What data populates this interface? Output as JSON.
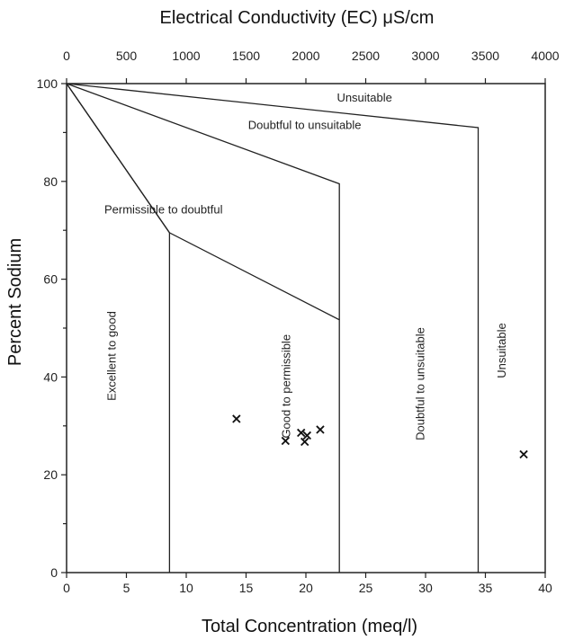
{
  "chart_data": {
    "type": "scatter",
    "title": "",
    "xlabel": "Total Concentration (meq/l)",
    "ylabel": "Percent Sodium",
    "x2label": "Electrical Conductivity (EC) μS/cm",
    "xlim": [
      0,
      40
    ],
    "ylim": [
      0,
      100
    ],
    "x2lim": [
      0,
      4000
    ],
    "x_ticks": [
      0,
      5,
      10,
      15,
      20,
      25,
      30,
      35,
      40
    ],
    "y_ticks": [
      0,
      20,
      40,
      60,
      80,
      100
    ],
    "x2_ticks": [
      "0",
      "500",
      "1000",
      "1500",
      "2000",
      "2500",
      "3000",
      "3500",
      "4000"
    ],
    "grid": false,
    "marker": "×",
    "points": [
      {
        "x": 14.2,
        "y": 31.6
      },
      {
        "x": 18.3,
        "y": 27.1
      },
      {
        "x": 19.6,
        "y": 28.8
      },
      {
        "x": 19.9,
        "y": 26.9
      },
      {
        "x": 20.1,
        "y": 28.2
      },
      {
        "x": 21.2,
        "y": 29.4
      },
      {
        "x": 38.2,
        "y": 24.4
      }
    ],
    "boundaries": [
      [
        [
          0,
          100
        ],
        [
          8.6,
          69.5
        ],
        [
          8.6,
          0
        ]
      ],
      [
        [
          0,
          100
        ],
        [
          8.6,
          69.5
        ],
        [
          22.8,
          51.7
        ],
        [
          22.8,
          0
        ]
      ],
      [
        [
          0,
          100
        ],
        [
          22.8,
          79.5
        ],
        [
          22.8,
          51.7
        ]
      ],
      [
        [
          0,
          100
        ],
        [
          34.4,
          91.0
        ],
        [
          34.4,
          0
        ]
      ]
    ],
    "zone_labels": [
      {
        "text": "Unsuitable",
        "x": 24.9,
        "y": 96.3,
        "rotate": 0
      },
      {
        "text": "Doubtful to unsuitable",
        "x": 19.9,
        "y": 90.7,
        "rotate": 0
      },
      {
        "text": "Permissible to doubtful",
        "x": 8.1,
        "y": 73.4,
        "rotate": 0
      },
      {
        "text": "Excellent to good",
        "x": 4.1,
        "y": 44.3,
        "rotate": -90
      },
      {
        "text": "Good to permissible",
        "x": 18.7,
        "y": 38.1,
        "rotate": -90
      },
      {
        "text": "Doubtful to unsuitable",
        "x": 29.9,
        "y": 38.6,
        "rotate": -90
      },
      {
        "text": "Unsuitable",
        "x": 36.7,
        "y": 45.4,
        "rotate": -90
      }
    ]
  }
}
